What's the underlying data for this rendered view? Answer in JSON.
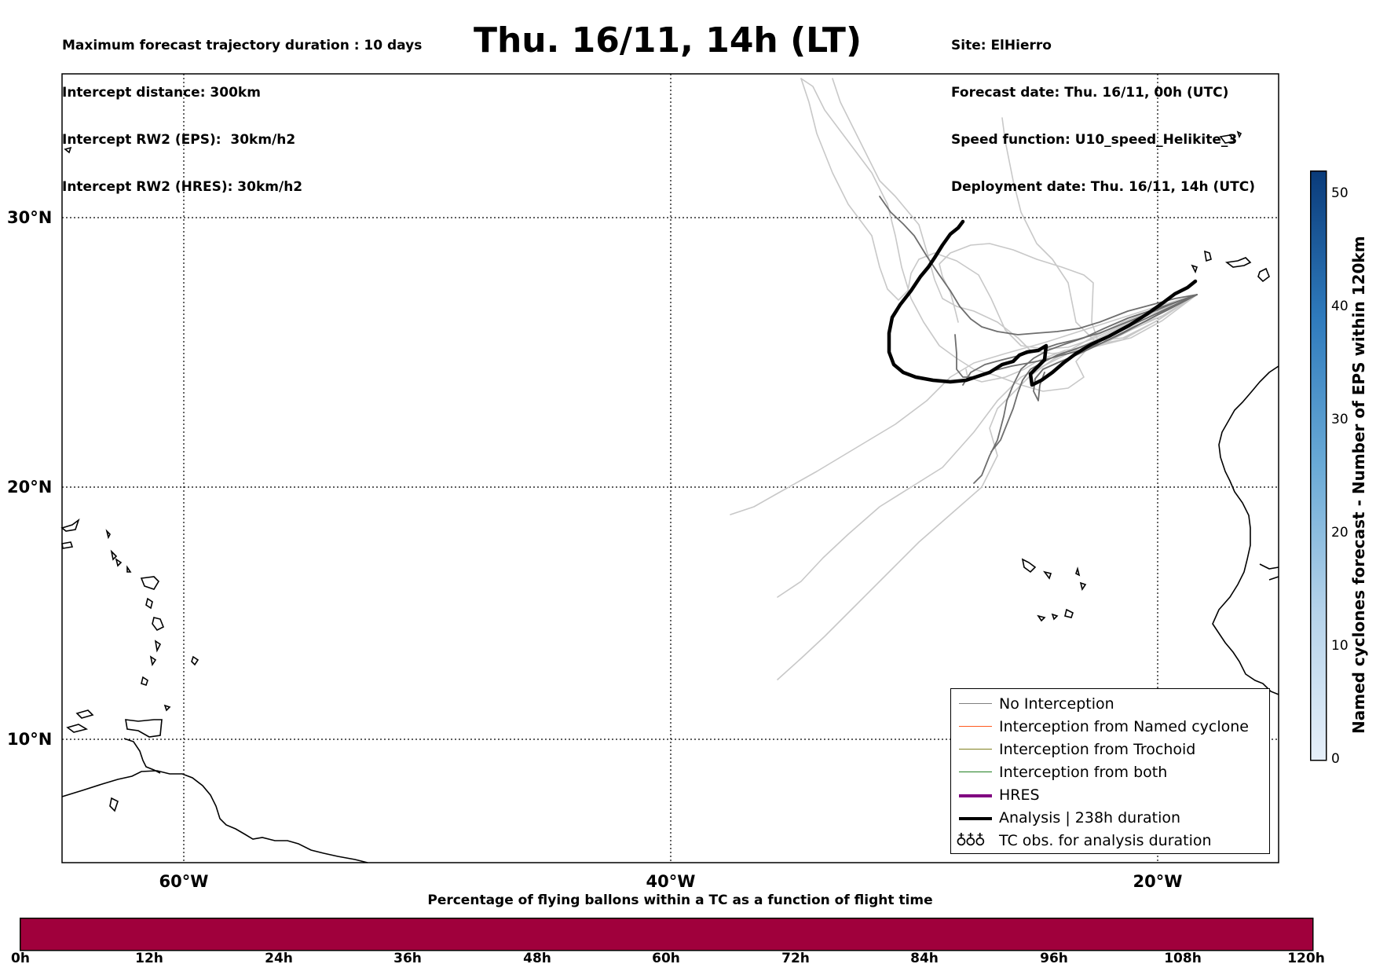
{
  "header": {
    "left_lines": [
      "Maximum forecast trajectory duration : 10 days",
      "Intercept distance: 300km",
      "Intercept RW2 (EPS):  30km/h2",
      "Intercept RW2 (HRES): 30km/h2"
    ],
    "title": "Thu. 16/11, 14h (LT)",
    "right_lines": [
      "Site: ElHierro",
      "Forecast date: Thu. 16/11, 00h (UTC)",
      "Speed function: U10_speed_Helikite_3",
      "Deployment date: Thu. 16/11, 14h (UTC)"
    ]
  },
  "map": {
    "lat_labels": [
      "30°N",
      "20°N",
      "10°N"
    ],
    "lon_labels": [
      "60°W",
      "40°W",
      "20°W"
    ],
    "coastline_color": "#000000",
    "gridline_style": "dotted"
  },
  "legend": {
    "items": [
      {
        "label": "No Interception",
        "color": "#808080",
        "width": "thin"
      },
      {
        "label": "Interception from Named cyclone",
        "color": "#ff5a1e",
        "width": "thin"
      },
      {
        "label": "Interception from Trochoid",
        "color": "#808020",
        "width": "thin"
      },
      {
        "label": "Interception from both",
        "color": "#208020",
        "width": "thin"
      },
      {
        "label": "HRES",
        "color": "#800080",
        "width": "thick"
      },
      {
        "label": "Analysis | 238h duration",
        "color": "#000000",
        "width": "thick"
      }
    ],
    "tc_symbol": "♁♁♁",
    "tc_label": "TC obs. for analysis duration"
  },
  "right_colorbar": {
    "title": "Named cyclones forecast - Number of EPS within 120km",
    "ticks": [
      "0",
      "10",
      "20",
      "30",
      "40",
      "50"
    ],
    "color_low": "#e6eff9",
    "color_high": "#0a3b7a"
  },
  "bottom_colorbar": {
    "title": "Percentage of flying ballons within a TC as a function of flight time",
    "ticks": [
      "0h",
      "12h",
      "24h",
      "36h",
      "48h",
      "60h",
      "72h",
      "84h",
      "96h",
      "108h",
      "120h"
    ],
    "fill_color": "#a0003c"
  }
}
